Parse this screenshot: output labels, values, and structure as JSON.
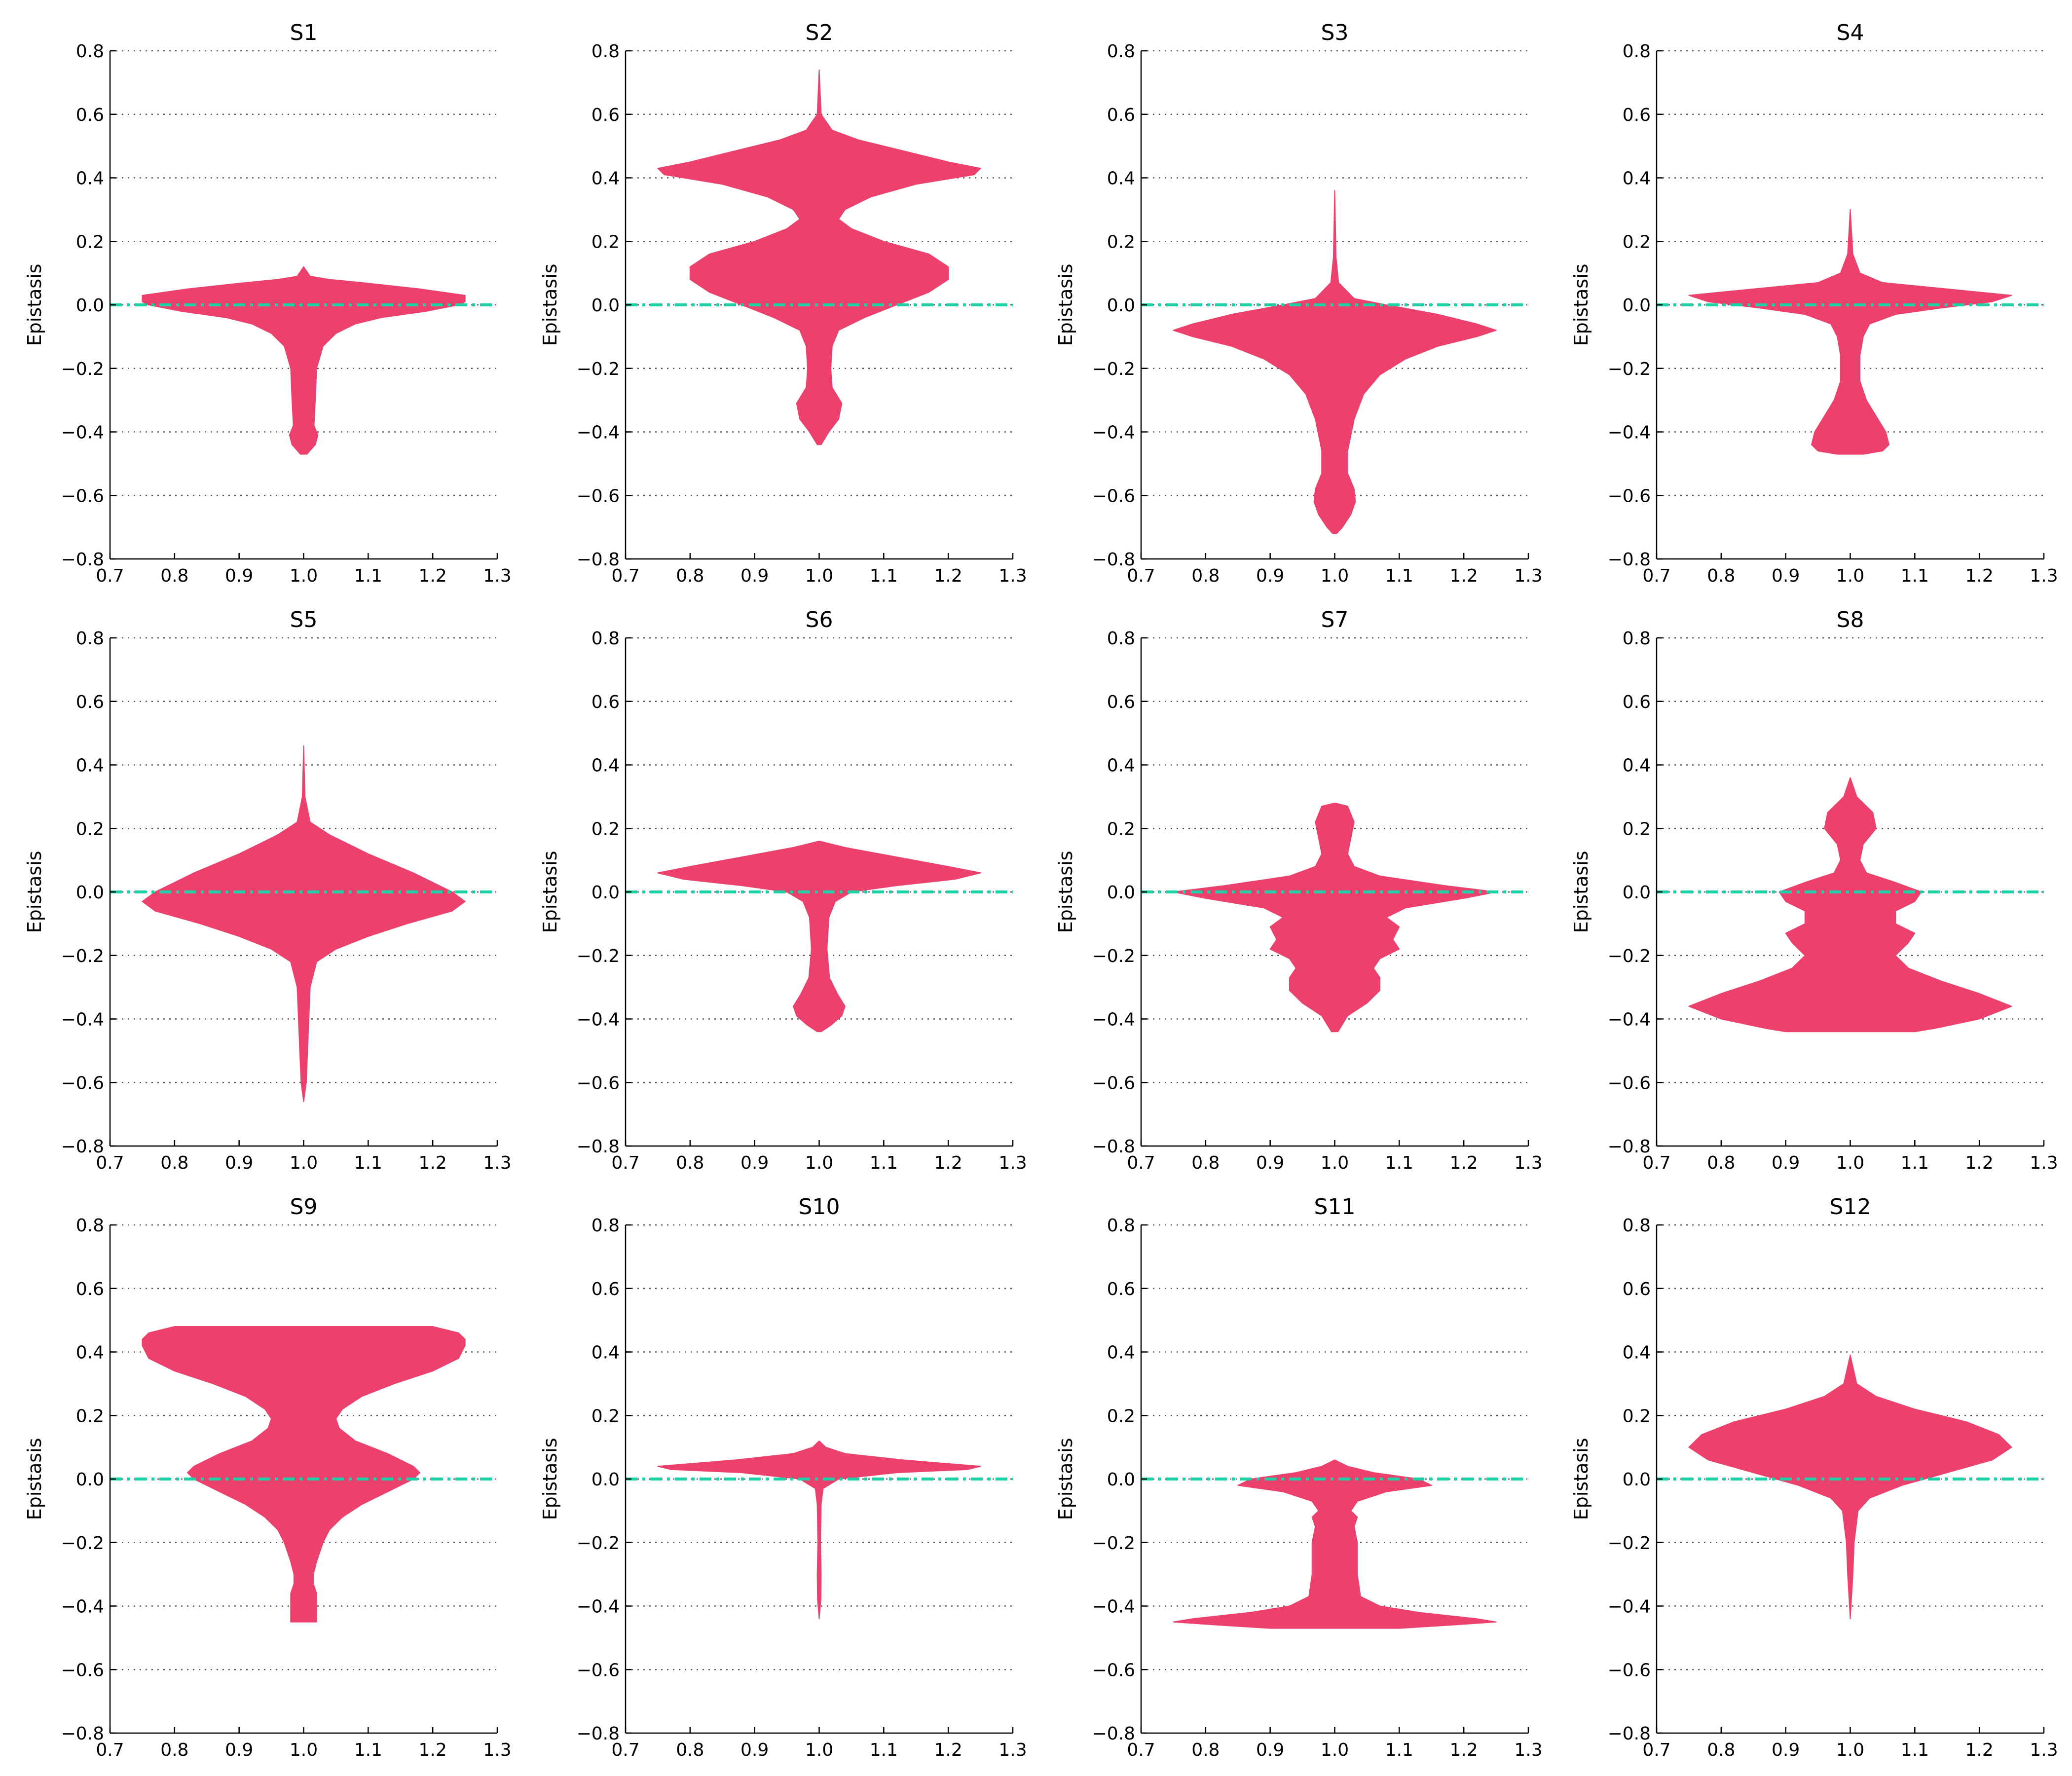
{
  "colors": {
    "violin": "#ec416c",
    "zero_line": "#19d1a4",
    "grid": "#555555"
  },
  "chart_data": [
    {
      "type": "violin",
      "title": "S1",
      "ylabel": "Epistasis",
      "xlim": [
        0.7,
        1.3
      ],
      "ylim": [
        -0.8,
        0.8
      ],
      "xticks": [
        "0.7",
        "0.8",
        "0.9",
        "1.0",
        "1.1",
        "1.2",
        "1.3"
      ],
      "yticks": [
        "−0.8",
        "−0.6",
        "−0.4",
        "−0.2",
        "0.0",
        "0.2",
        "0.4",
        "0.6",
        "0.8"
      ],
      "grid": "horizontal dotted",
      "position": 1.0,
      "reference_line_y": 0.0,
      "profile": [
        [
          0.12,
          0.0
        ],
        [
          0.09,
          0.01
        ],
        [
          0.08,
          0.04
        ],
        [
          0.07,
          0.09
        ],
        [
          0.05,
          0.18
        ],
        [
          0.03,
          0.25
        ],
        [
          0.01,
          0.25
        ],
        [
          0.0,
          0.24
        ],
        [
          -0.02,
          0.19
        ],
        [
          -0.04,
          0.12
        ],
        [
          -0.06,
          0.08
        ],
        [
          -0.09,
          0.05
        ],
        [
          -0.13,
          0.03
        ],
        [
          -0.2,
          0.02
        ],
        [
          -0.3,
          0.018
        ],
        [
          -0.38,
          0.016
        ],
        [
          -0.41,
          0.022
        ],
        [
          -0.44,
          0.018
        ],
        [
          -0.47,
          0.005
        ]
      ]
    },
    {
      "type": "violin",
      "title": "S2",
      "ylabel": "Epistasis",
      "xlim": [
        0.7,
        1.3
      ],
      "ylim": [
        -0.8,
        0.8
      ],
      "xticks": [
        "0.7",
        "0.8",
        "0.9",
        "1.0",
        "1.1",
        "1.2",
        "1.3"
      ],
      "yticks": [
        "−0.8",
        "−0.6",
        "−0.4",
        "−0.2",
        "0.0",
        "0.2",
        "0.4",
        "0.6",
        "0.8"
      ],
      "grid": "horizontal dotted",
      "position": 1.0,
      "reference_line_y": 0.0,
      "profile": [
        [
          0.74,
          0.0
        ],
        [
          0.6,
          0.003
        ],
        [
          0.55,
          0.02
        ],
        [
          0.52,
          0.06
        ],
        [
          0.48,
          0.14
        ],
        [
          0.45,
          0.2
        ],
        [
          0.43,
          0.25
        ],
        [
          0.41,
          0.24
        ],
        [
          0.38,
          0.15
        ],
        [
          0.34,
          0.08
        ],
        [
          0.3,
          0.04
        ],
        [
          0.27,
          0.03
        ],
        [
          0.24,
          0.05
        ],
        [
          0.2,
          0.1
        ],
        [
          0.16,
          0.17
        ],
        [
          0.12,
          0.2
        ],
        [
          0.08,
          0.2
        ],
        [
          0.04,
          0.17
        ],
        [
          0.0,
          0.12
        ],
        [
          -0.04,
          0.07
        ],
        [
          -0.08,
          0.03
        ],
        [
          -0.13,
          0.02
        ],
        [
          -0.2,
          0.018
        ],
        [
          -0.26,
          0.02
        ],
        [
          -0.31,
          0.035
        ],
        [
          -0.36,
          0.03
        ],
        [
          -0.4,
          0.015
        ],
        [
          -0.44,
          0.003
        ]
      ]
    },
    {
      "type": "violin",
      "title": "S3",
      "ylabel": "Epistasis",
      "xlim": [
        0.7,
        1.3
      ],
      "ylim": [
        -0.8,
        0.8
      ],
      "xticks": [
        "0.7",
        "0.8",
        "0.9",
        "1.0",
        "1.1",
        "1.2",
        "1.3"
      ],
      "yticks": [
        "−0.8",
        "−0.6",
        "−0.4",
        "−0.2",
        "0.0",
        "0.2",
        "0.4",
        "0.6",
        "0.8"
      ],
      "grid": "horizontal dotted",
      "position": 1.0,
      "reference_line_y": 0.0,
      "profile": [
        [
          0.36,
          0.0
        ],
        [
          0.15,
          0.002
        ],
        [
          0.07,
          0.006
        ],
        [
          0.02,
          0.03
        ],
        [
          0.0,
          0.08
        ],
        [
          -0.03,
          0.16
        ],
        [
          -0.06,
          0.22
        ],
        [
          -0.08,
          0.25
        ],
        [
          -0.1,
          0.22
        ],
        [
          -0.13,
          0.16
        ],
        [
          -0.17,
          0.11
        ],
        [
          -0.22,
          0.07
        ],
        [
          -0.28,
          0.045
        ],
        [
          -0.36,
          0.03
        ],
        [
          -0.46,
          0.02
        ],
        [
          -0.53,
          0.02
        ],
        [
          -0.58,
          0.03
        ],
        [
          -0.62,
          0.032
        ],
        [
          -0.66,
          0.025
        ],
        [
          -0.7,
          0.012
        ],
        [
          -0.72,
          0.003
        ]
      ]
    },
    {
      "type": "violin",
      "title": "S4",
      "ylabel": "Epistasis",
      "xlim": [
        0.7,
        1.3
      ],
      "ylim": [
        -0.8,
        0.8
      ],
      "xticks": [
        "0.7",
        "0.8",
        "0.9",
        "1.0",
        "1.1",
        "1.2",
        "1.3"
      ],
      "yticks": [
        "−0.8",
        "−0.6",
        "−0.4",
        "−0.2",
        "0.0",
        "0.2",
        "0.4",
        "0.6",
        "0.8"
      ],
      "grid": "horizontal dotted",
      "position": 1.0,
      "reference_line_y": 0.0,
      "profile": [
        [
          0.3,
          0.0
        ],
        [
          0.16,
          0.004
        ],
        [
          0.1,
          0.015
        ],
        [
          0.07,
          0.05
        ],
        [
          0.05,
          0.15
        ],
        [
          0.03,
          0.25
        ],
        [
          0.01,
          0.22
        ],
        [
          -0.01,
          0.14
        ],
        [
          -0.03,
          0.07
        ],
        [
          -0.06,
          0.03
        ],
        [
          -0.1,
          0.02
        ],
        [
          -0.16,
          0.015
        ],
        [
          -0.24,
          0.015
        ],
        [
          -0.3,
          0.025
        ],
        [
          -0.35,
          0.04
        ],
        [
          -0.4,
          0.055
        ],
        [
          -0.44,
          0.06
        ],
        [
          -0.46,
          0.05
        ],
        [
          -0.47,
          0.02
        ]
      ]
    },
    {
      "type": "violin",
      "title": "S5",
      "ylabel": "Epistasis",
      "xlim": [
        0.7,
        1.3
      ],
      "ylim": [
        -0.8,
        0.8
      ],
      "xticks": [
        "0.7",
        "0.8",
        "0.9",
        "1.0",
        "1.1",
        "1.2",
        "1.3"
      ],
      "yticks": [
        "−0.8",
        "−0.6",
        "−0.4",
        "−0.2",
        "0.0",
        "0.2",
        "0.4",
        "0.6",
        "0.8"
      ],
      "grid": "horizontal dotted",
      "position": 1.0,
      "reference_line_y": 0.0,
      "profile": [
        [
          0.46,
          0.0
        ],
        [
          0.3,
          0.002
        ],
        [
          0.22,
          0.01
        ],
        [
          0.18,
          0.04
        ],
        [
          0.12,
          0.1
        ],
        [
          0.06,
          0.17
        ],
        [
          0.0,
          0.23
        ],
        [
          -0.03,
          0.25
        ],
        [
          -0.06,
          0.23
        ],
        [
          -0.1,
          0.16
        ],
        [
          -0.14,
          0.1
        ],
        [
          -0.18,
          0.05
        ],
        [
          -0.22,
          0.02
        ],
        [
          -0.3,
          0.01
        ],
        [
          -0.45,
          0.007
        ],
        [
          -0.6,
          0.004
        ],
        [
          -0.66,
          0.0
        ]
      ]
    },
    {
      "type": "violin",
      "title": "S6",
      "ylabel": "Epistasis",
      "xlim": [
        0.7,
        1.3
      ],
      "ylim": [
        -0.8,
        0.8
      ],
      "xticks": [
        "0.7",
        "0.8",
        "0.9",
        "1.0",
        "1.1",
        "1.2",
        "1.3"
      ],
      "yticks": [
        "−0.8",
        "−0.6",
        "−0.4",
        "−0.2",
        "0.0",
        "0.2",
        "0.4",
        "0.6",
        "0.8"
      ],
      "grid": "horizontal dotted",
      "position": 1.0,
      "reference_line_y": 0.0,
      "profile": [
        [
          0.16,
          0.0
        ],
        [
          0.14,
          0.04
        ],
        [
          0.11,
          0.12
        ],
        [
          0.08,
          0.2
        ],
        [
          0.06,
          0.25
        ],
        [
          0.04,
          0.21
        ],
        [
          0.02,
          0.12
        ],
        [
          0.0,
          0.05
        ],
        [
          -0.03,
          0.025
        ],
        [
          -0.08,
          0.015
        ],
        [
          -0.18,
          0.012
        ],
        [
          -0.27,
          0.016
        ],
        [
          -0.32,
          0.028
        ],
        [
          -0.36,
          0.04
        ],
        [
          -0.39,
          0.035
        ],
        [
          -0.42,
          0.018
        ],
        [
          -0.44,
          0.003
        ]
      ]
    },
    {
      "type": "violin",
      "title": "S7",
      "ylabel": "Epistasis",
      "xlim": [
        0.7,
        1.3
      ],
      "ylim": [
        -0.8,
        0.8
      ],
      "xticks": [
        "0.7",
        "0.8",
        "0.9",
        "1.0",
        "1.1",
        "1.2",
        "1.3"
      ],
      "yticks": [
        "−0.8",
        "−0.6",
        "−0.4",
        "−0.2",
        "0.0",
        "0.2",
        "0.4",
        "0.6",
        "0.8"
      ],
      "grid": "horizontal dotted",
      "position": 1.0,
      "reference_line_y": 0.0,
      "profile": [
        [
          0.28,
          0.0
        ],
        [
          0.27,
          0.02
        ],
        [
          0.22,
          0.03
        ],
        [
          0.17,
          0.025
        ],
        [
          0.12,
          0.02
        ],
        [
          0.08,
          0.03
        ],
        [
          0.05,
          0.07
        ],
        [
          0.02,
          0.17
        ],
        [
          0.0,
          0.25
        ],
        [
          -0.02,
          0.2
        ],
        [
          -0.05,
          0.11
        ],
        [
          -0.08,
          0.08
        ],
        [
          -0.11,
          0.1
        ],
        [
          -0.15,
          0.09
        ],
        [
          -0.18,
          0.1
        ],
        [
          -0.21,
          0.07
        ],
        [
          -0.24,
          0.06
        ],
        [
          -0.27,
          0.07
        ],
        [
          -0.31,
          0.07
        ],
        [
          -0.35,
          0.05
        ],
        [
          -0.39,
          0.02
        ],
        [
          -0.44,
          0.005
        ]
      ]
    },
    {
      "type": "violin",
      "title": "S8",
      "ylabel": "Epistasis",
      "xlim": [
        0.7,
        1.3
      ],
      "ylim": [
        -0.8,
        0.8
      ],
      "xticks": [
        "0.7",
        "0.8",
        "0.9",
        "1.0",
        "1.1",
        "1.2",
        "1.3"
      ],
      "yticks": [
        "−0.8",
        "−0.6",
        "−0.4",
        "−0.2",
        "0.0",
        "0.2",
        "0.4",
        "0.6",
        "0.8"
      ],
      "grid": "horizontal dotted",
      "position": 1.0,
      "reference_line_y": 0.0,
      "profile": [
        [
          0.36,
          0.0
        ],
        [
          0.3,
          0.01
        ],
        [
          0.25,
          0.035
        ],
        [
          0.2,
          0.04
        ],
        [
          0.15,
          0.02
        ],
        [
          0.1,
          0.015
        ],
        [
          0.06,
          0.025
        ],
        [
          0.03,
          0.07
        ],
        [
          0.0,
          0.11
        ],
        [
          -0.03,
          0.1
        ],
        [
          -0.06,
          0.07
        ],
        [
          -0.1,
          0.07
        ],
        [
          -0.13,
          0.1
        ],
        [
          -0.16,
          0.09
        ],
        [
          -0.2,
          0.07
        ],
        [
          -0.24,
          0.09
        ],
        [
          -0.28,
          0.14
        ],
        [
          -0.32,
          0.2
        ],
        [
          -0.36,
          0.25
        ],
        [
          -0.4,
          0.2
        ],
        [
          -0.43,
          0.13
        ],
        [
          -0.44,
          0.1
        ]
      ]
    },
    {
      "type": "violin",
      "title": "S9",
      "ylabel": "Epistasis",
      "xlim": [
        0.7,
        1.3
      ],
      "ylim": [
        -0.8,
        0.8
      ],
      "xticks": [
        "0.7",
        "0.8",
        "0.9",
        "1.0",
        "1.1",
        "1.2",
        "1.3"
      ],
      "yticks": [
        "−0.8",
        "−0.6",
        "−0.4",
        "−0.2",
        "0.0",
        "0.2",
        "0.4",
        "0.6",
        "0.8"
      ],
      "grid": "horizontal dotted",
      "position": 1.0,
      "reference_line_y": 0.0,
      "profile": [
        [
          0.48,
          0.2
        ],
        [
          0.46,
          0.24
        ],
        [
          0.44,
          0.25
        ],
        [
          0.42,
          0.25
        ],
        [
          0.38,
          0.24
        ],
        [
          0.34,
          0.2
        ],
        [
          0.3,
          0.14
        ],
        [
          0.26,
          0.09
        ],
        [
          0.22,
          0.06
        ],
        [
          0.19,
          0.05
        ],
        [
          0.16,
          0.055
        ],
        [
          0.12,
          0.08
        ],
        [
          0.08,
          0.13
        ],
        [
          0.04,
          0.17
        ],
        [
          0.02,
          0.18
        ],
        [
          0.0,
          0.17
        ],
        [
          -0.04,
          0.13
        ],
        [
          -0.08,
          0.09
        ],
        [
          -0.12,
          0.06
        ],
        [
          -0.16,
          0.04
        ],
        [
          -0.2,
          0.03
        ],
        [
          -0.26,
          0.02
        ],
        [
          -0.3,
          0.015
        ],
        [
          -0.33,
          0.015
        ],
        [
          -0.36,
          0.02
        ],
        [
          -0.4,
          0.02
        ],
        [
          -0.43,
          0.02
        ],
        [
          -0.45,
          0.02
        ]
      ]
    },
    {
      "type": "violin",
      "title": "S10",
      "ylabel": "Epistasis",
      "xlim": [
        0.7,
        1.3
      ],
      "ylim": [
        -0.8,
        0.8
      ],
      "xticks": [
        "0.7",
        "0.8",
        "0.9",
        "1.0",
        "1.1",
        "1.2",
        "1.3"
      ],
      "yticks": [
        "−0.8",
        "−0.6",
        "−0.4",
        "−0.2",
        "0.0",
        "0.2",
        "0.4",
        "0.6",
        "0.8"
      ],
      "grid": "horizontal dotted",
      "position": 1.0,
      "reference_line_y": 0.0,
      "profile": [
        [
          0.12,
          0.0
        ],
        [
          0.1,
          0.01
        ],
        [
          0.08,
          0.04
        ],
        [
          0.06,
          0.13
        ],
        [
          0.04,
          0.25
        ],
        [
          0.03,
          0.23
        ],
        [
          0.02,
          0.12
        ],
        [
          0.0,
          0.03
        ],
        [
          -0.03,
          0.006
        ],
        [
          -0.08,
          0.003
        ],
        [
          -0.2,
          0.002
        ],
        [
          -0.3,
          0.003
        ],
        [
          -0.38,
          0.0025
        ],
        [
          -0.44,
          0.0
        ]
      ]
    },
    {
      "type": "violin",
      "title": "S11",
      "ylabel": "Epistasis",
      "xlim": [
        0.7,
        1.3
      ],
      "ylim": [
        -0.8,
        0.8
      ],
      "xticks": [
        "0.7",
        "0.8",
        "0.9",
        "1.0",
        "1.1",
        "1.2",
        "1.3"
      ],
      "yticks": [
        "−0.8",
        "−0.6",
        "−0.4",
        "−0.2",
        "0.0",
        "0.2",
        "0.4",
        "0.6",
        "0.8"
      ],
      "grid": "horizontal dotted",
      "position": 1.0,
      "reference_line_y": 0.0,
      "profile": [
        [
          0.06,
          0.0
        ],
        [
          0.04,
          0.02
        ],
        [
          0.02,
          0.06
        ],
        [
          0.0,
          0.13
        ],
        [
          -0.02,
          0.15
        ],
        [
          -0.04,
          0.08
        ],
        [
          -0.07,
          0.035
        ],
        [
          -0.1,
          0.025
        ],
        [
          -0.12,
          0.035
        ],
        [
          -0.15,
          0.03
        ],
        [
          -0.2,
          0.035
        ],
        [
          -0.3,
          0.035
        ],
        [
          -0.37,
          0.04
        ],
        [
          -0.4,
          0.07
        ],
        [
          -0.42,
          0.13
        ],
        [
          -0.44,
          0.22
        ],
        [
          -0.45,
          0.25
        ],
        [
          -0.46,
          0.18
        ],
        [
          -0.47,
          0.1
        ]
      ]
    },
    {
      "type": "violin",
      "title": "S12",
      "ylabel": "Epistasis",
      "xlim": [
        0.7,
        1.3
      ],
      "ylim": [
        -0.8,
        0.8
      ],
      "xticks": [
        "0.7",
        "0.8",
        "0.9",
        "1.0",
        "1.1",
        "1.2",
        "1.3"
      ],
      "yticks": [
        "−0.8",
        "−0.6",
        "−0.4",
        "−0.2",
        "0.0",
        "0.2",
        "0.4",
        "0.6",
        "0.8"
      ],
      "grid": "horizontal dotted",
      "position": 1.0,
      "reference_line_y": 0.0,
      "profile": [
        [
          0.39,
          0.0
        ],
        [
          0.3,
          0.01
        ],
        [
          0.26,
          0.04
        ],
        [
          0.22,
          0.1
        ],
        [
          0.18,
          0.18
        ],
        [
          0.14,
          0.23
        ],
        [
          0.1,
          0.25
        ],
        [
          0.06,
          0.22
        ],
        [
          0.02,
          0.15
        ],
        [
          -0.02,
          0.08
        ],
        [
          -0.06,
          0.03
        ],
        [
          -0.1,
          0.012
        ],
        [
          -0.2,
          0.006
        ],
        [
          -0.3,
          0.004
        ],
        [
          -0.44,
          0.0
        ]
      ]
    }
  ]
}
